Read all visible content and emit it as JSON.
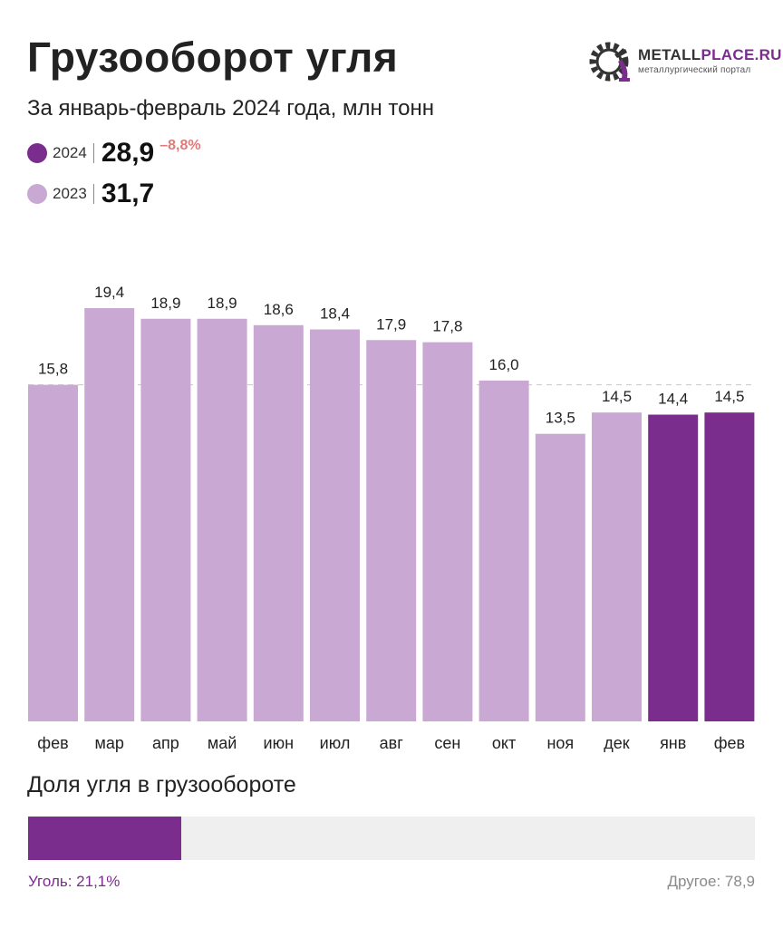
{
  "header": {
    "title": "Грузооборот угля",
    "subtitle": "За январь-февраль 2024 года, млн тонн"
  },
  "logo": {
    "name_part1": "METALL",
    "name_part2": "PLACE.RU",
    "tagline": "металлургический портал"
  },
  "legend": [
    {
      "year": "2024",
      "value": "28,9",
      "change": "–8,8%",
      "color": "#7b2d8e"
    },
    {
      "year": "2023",
      "value": "31,7",
      "change": "",
      "color": "#c9a9d3"
    }
  ],
  "chart_data": {
    "type": "bar",
    "title": "Грузооборот угля",
    "ylabel": "млн тонн",
    "ylim": [
      0,
      19.4
    ],
    "categories": [
      "фев",
      "мар",
      "апр",
      "май",
      "июн",
      "июл",
      "авг",
      "сен",
      "окт",
      "ноя",
      "дек",
      "янв",
      "фев"
    ],
    "values": [
      15.8,
      19.4,
      18.9,
      18.9,
      18.6,
      18.4,
      17.9,
      17.8,
      16.0,
      13.5,
      14.5,
      14.4,
      14.5
    ],
    "labels": [
      "15,8",
      "19,4",
      "18,9",
      "18,9",
      "18,6",
      "18,4",
      "17,9",
      "17,8",
      "16,0",
      "13,5",
      "14,5",
      "14,4",
      "14,5"
    ],
    "year_of_bar": [
      "2023",
      "2023",
      "2023",
      "2023",
      "2023",
      "2023",
      "2023",
      "2023",
      "2023",
      "2023",
      "2023",
      "2024",
      "2024"
    ],
    "reference_line_value": 15.8,
    "colors": {
      "2023": "#c9a9d3",
      "2024": "#7b2d8e",
      "reference_line": "#c8c8c8",
      "label": "#222222"
    }
  },
  "share": {
    "title": "Доля угля в грузообороте",
    "coal_label": "Уголь: 21,1%",
    "coal_value": 21.1,
    "other_label": "Другое: 78,9",
    "other_value": 78.9
  }
}
